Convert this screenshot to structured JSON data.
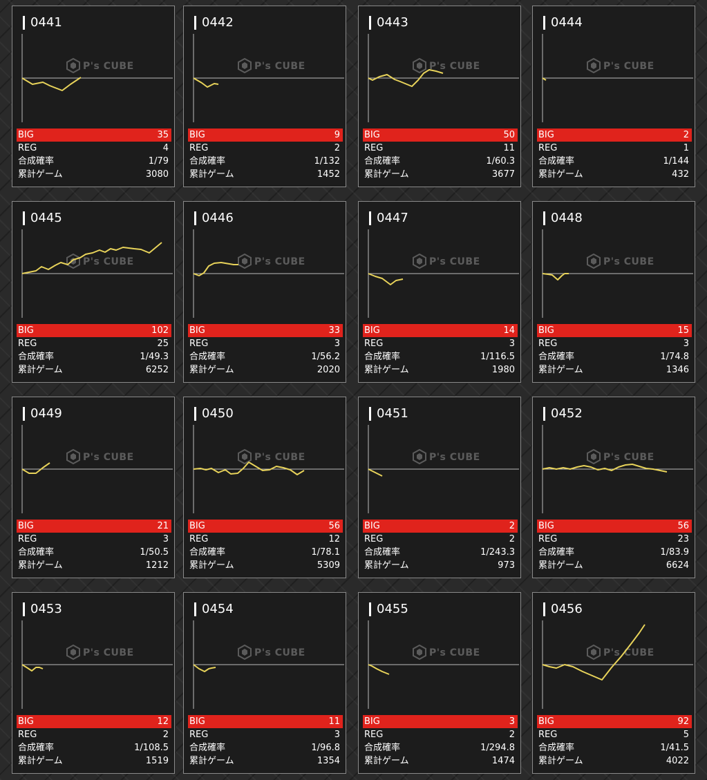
{
  "labels": {
    "big": "BIG",
    "reg": "REG",
    "rate": "合成確率",
    "games": "累計ゲーム"
  },
  "watermark": "P's CUBE",
  "colors": {
    "line": "#e8d35a",
    "big_bar": "#e0231c",
    "axis": "#bdbdbd"
  },
  "machines": [
    {
      "id": "0441",
      "big": "35",
      "reg": "4",
      "rate": "1/79",
      "games": "3080"
    },
    {
      "id": "0442",
      "big": "9",
      "reg": "2",
      "rate": "1/132",
      "games": "1452"
    },
    {
      "id": "0443",
      "big": "50",
      "reg": "11",
      "rate": "1/60.3",
      "games": "3677"
    },
    {
      "id": "0444",
      "big": "2",
      "reg": "1",
      "rate": "1/144",
      "games": "432"
    },
    {
      "id": "0445",
      "big": "102",
      "reg": "25",
      "rate": "1/49.3",
      "games": "6252"
    },
    {
      "id": "0446",
      "big": "33",
      "reg": "3",
      "rate": "1/56.2",
      "games": "2020"
    },
    {
      "id": "0447",
      "big": "14",
      "reg": "3",
      "rate": "1/116.5",
      "games": "1980"
    },
    {
      "id": "0448",
      "big": "15",
      "reg": "3",
      "rate": "1/74.8",
      "games": "1346"
    },
    {
      "id": "0449",
      "big": "21",
      "reg": "3",
      "rate": "1/50.5",
      "games": "1212"
    },
    {
      "id": "0450",
      "big": "56",
      "reg": "12",
      "rate": "1/78.1",
      "games": "5309"
    },
    {
      "id": "0451",
      "big": "2",
      "reg": "2",
      "rate": "1/243.3",
      "games": "973"
    },
    {
      "id": "0452",
      "big": "56",
      "reg": "23",
      "rate": "1/83.9",
      "games": "6624"
    },
    {
      "id": "0453",
      "big": "12",
      "reg": "2",
      "rate": "1/108.5",
      "games": "1519"
    },
    {
      "id": "0454",
      "big": "11",
      "reg": "3",
      "rate": "1/96.8",
      "games": "1354"
    },
    {
      "id": "0455",
      "big": "3",
      "reg": "2",
      "rate": "1/294.8",
      "games": "1474"
    },
    {
      "id": "0456",
      "big": "92",
      "reg": "5",
      "rate": "1/41.5",
      "games": "4022"
    }
  ],
  "chart_data": [
    {
      "type": "line",
      "label": "0441",
      "x": [
        0,
        15,
        30,
        40,
        58,
        70,
        85
      ],
      "y": [
        0,
        -9,
        -6,
        -11,
        -18,
        -9,
        1
      ]
    },
    {
      "type": "line",
      "label": "0442",
      "x": [
        0,
        12,
        20,
        30,
        36
      ],
      "y": [
        0,
        -7,
        -13,
        -8,
        -9
      ]
    },
    {
      "type": "line",
      "label": "0443",
      "x": [
        0,
        6,
        16,
        27,
        38,
        46,
        63,
        72,
        80,
        88,
        98,
        108
      ],
      "y": [
        0,
        -3,
        2,
        5,
        -2,
        -5,
        -12,
        -3,
        7,
        12,
        10,
        7
      ]
    },
    {
      "type": "line",
      "label": "0444",
      "x": [
        0,
        5
      ],
      "y": [
        0,
        -3
      ]
    },
    {
      "type": "line",
      "label": "0445",
      "x": [
        0,
        10,
        20,
        28,
        38,
        48,
        56,
        66,
        74,
        84,
        92,
        102,
        112,
        120,
        128,
        136,
        146,
        154,
        162,
        172,
        184,
        202
      ],
      "y": [
        0,
        2,
        4,
        10,
        6,
        12,
        16,
        13,
        20,
        23,
        28,
        30,
        34,
        31,
        36,
        34,
        38,
        37,
        36,
        35,
        30,
        45
      ]
    },
    {
      "type": "line",
      "label": "0446",
      "x": [
        0,
        8,
        15,
        22,
        30,
        40,
        52,
        58,
        65
      ],
      "y": [
        0,
        -3,
        1,
        11,
        15,
        16,
        14,
        13,
        13
      ]
    },
    {
      "type": "line",
      "label": "0447",
      "x": [
        0,
        10,
        20,
        32,
        40,
        50
      ],
      "y": [
        0,
        -4,
        -7,
        -16,
        -10,
        -8
      ]
    },
    {
      "type": "line",
      "label": "0448",
      "x": [
        0,
        8,
        14,
        22,
        28,
        32,
        38
      ],
      "y": [
        0,
        -1,
        -2,
        -9,
        -3,
        0,
        0
      ]
    },
    {
      "type": "line",
      "label": "0449",
      "x": [
        0,
        10,
        20,
        30,
        40
      ],
      "y": [
        0,
        -6,
        -6,
        2,
        9
      ]
    },
    {
      "type": "line",
      "label": "0450",
      "x": [
        0,
        10,
        18,
        26,
        36,
        46,
        54,
        64,
        72,
        80,
        90,
        100,
        110,
        120,
        130,
        140,
        150,
        160
      ],
      "y": [
        0,
        1,
        -1,
        1,
        -5,
        -1,
        -7,
        -6,
        1,
        10,
        4,
        -2,
        -1,
        4,
        2,
        -1,
        -8,
        -2
      ]
    },
    {
      "type": "line",
      "label": "0451",
      "x": [
        0,
        10,
        20
      ],
      "y": [
        0,
        -5,
        -10
      ]
    },
    {
      "type": "line",
      "label": "0452",
      "x": [
        0,
        10,
        20,
        30,
        40,
        50,
        60,
        70,
        80,
        90,
        100,
        110,
        120,
        130,
        140,
        150,
        160,
        180
      ],
      "y": [
        0,
        2,
        0,
        2,
        0,
        3,
        5,
        3,
        -1,
        1,
        -2,
        3,
        6,
        7,
        4,
        1,
        0,
        -4
      ]
    },
    {
      "type": "line",
      "label": "0453",
      "x": [
        0,
        8,
        14,
        20,
        25,
        30
      ],
      "y": [
        0,
        -5,
        -9,
        -4,
        -4,
        -6
      ]
    },
    {
      "type": "line",
      "label": "0454",
      "x": [
        0,
        8,
        16,
        22,
        26,
        32
      ],
      "y": [
        0,
        -6,
        -10,
        -6,
        -5,
        -4
      ]
    },
    {
      "type": "line",
      "label": "0455",
      "x": [
        0,
        5,
        12,
        20,
        30
      ],
      "y": [
        0,
        -2,
        -6,
        -10,
        -14
      ]
    },
    {
      "type": "line",
      "label": "0456",
      "x": [
        0,
        10,
        20,
        32,
        44,
        58,
        72,
        86,
        100,
        114,
        128,
        140,
        148
      ],
      "y": [
        0,
        -3,
        -5,
        0,
        -3,
        -10,
        -16,
        -22,
        -4,
        12,
        30,
        46,
        58
      ]
    }
  ]
}
